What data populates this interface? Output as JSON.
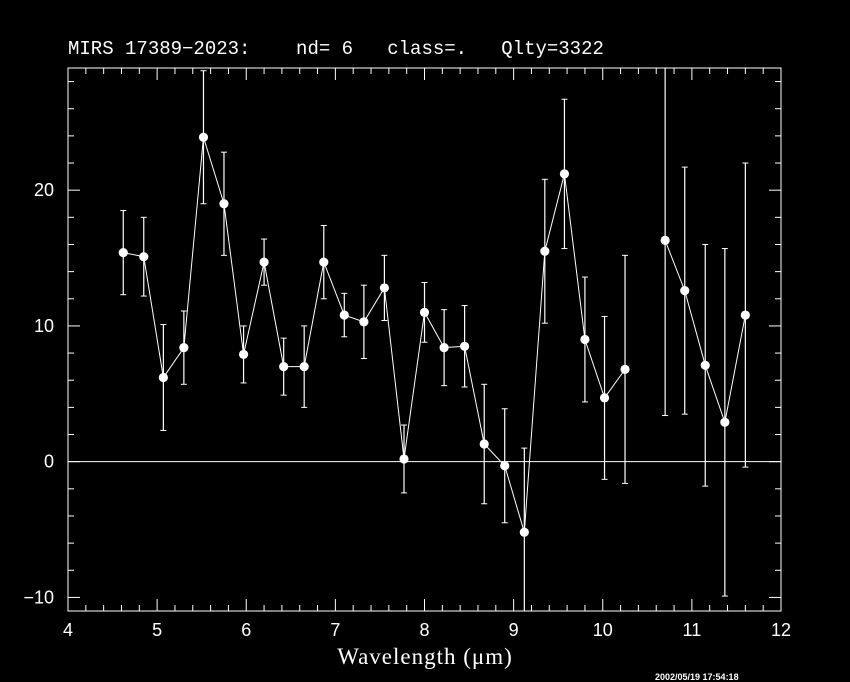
{
  "title": "MIRS 17389−2023:    nd= 6   class=.   Qlty=3322",
  "xlabel": "Wavelength (μm)",
  "timestamp": "2002/05/19 17:54:18",
  "chart_data": {
    "type": "scatter",
    "title": "MIRS 17389−2023:    nd= 6   class=.   Qlty=3322",
    "xlabel": "Wavelength (μm)",
    "ylabel": "",
    "xlim": [
      4,
      12
    ],
    "ylim": [
      -11,
      29
    ],
    "x_ticks": [
      4,
      5,
      6,
      7,
      8,
      9,
      10,
      11,
      12
    ],
    "y_ticks": [
      -10,
      0,
      10,
      20
    ],
    "zero_line": true,
    "grid": false,
    "colors": {
      "background": "#000000",
      "foreground": "#ffffff"
    },
    "series": [
      {
        "x": [
          4.62,
          4.85,
          5.07,
          5.3,
          5.52,
          5.75,
          5.97,
          6.2,
          6.42,
          6.65,
          6.87,
          7.1,
          7.32,
          7.55,
          7.77,
          8.0,
          8.22,
          8.45,
          8.67,
          8.9,
          9.12,
          9.35,
          9.57,
          9.8,
          10.02,
          10.25
        ],
        "y": [
          15.4,
          15.1,
          6.2,
          8.4,
          23.9,
          19.0,
          7.9,
          14.7,
          7.0,
          7.0,
          14.7,
          10.8,
          10.3,
          12.8,
          0.2,
          11.0,
          8.4,
          8.5,
          1.3,
          -0.3,
          -5.2,
          15.5,
          21.2,
          9.0,
          4.7,
          6.8
        ],
        "err": [
          3.1,
          2.9,
          3.9,
          2.7,
          4.9,
          3.8,
          2.1,
          1.7,
          2.1,
          3.0,
          2.7,
          1.6,
          2.7,
          2.4,
          2.5,
          2.2,
          2.8,
          3.0,
          4.4,
          4.2,
          6.2,
          5.3,
          5.5,
          4.6,
          6.0,
          8.4
        ]
      },
      {
        "x": [
          10.7,
          10.92,
          11.15,
          11.37,
          11.6
        ],
        "y": [
          16.3,
          12.6,
          7.1,
          2.9,
          10.8
        ],
        "err": [
          12.9,
          9.1,
          8.9,
          12.8,
          11.2
        ]
      }
    ]
  }
}
